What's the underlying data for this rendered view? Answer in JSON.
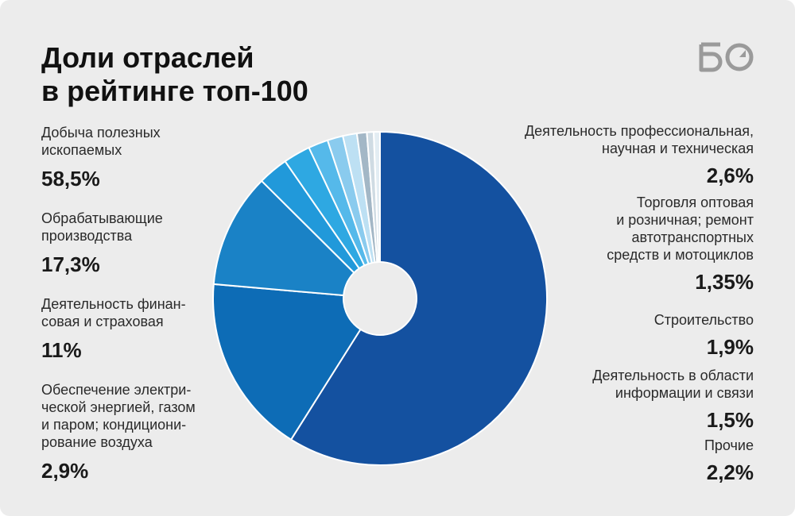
{
  "title_lines": [
    "Доли отраслей",
    "в рейтинге топ-100"
  ],
  "logo_text": "БО",
  "colors": {
    "background": "#ececec",
    "slices": [
      "#1451a0",
      "#0d6cb6",
      "#1a82c6",
      "#2199da",
      "#2ea8e2",
      "#55b9ea",
      "#8acbee",
      "#bde0f3",
      "#a3b7c6",
      "#cfdbe3",
      "#e3edf3"
    ]
  },
  "labels": [
    {
      "name_lines": [
        "Добыча полезных",
        "ископаемых"
      ],
      "pct": "58,5%"
    },
    {
      "name_lines": [
        "Обрабатывающие",
        "производства"
      ],
      "pct": "17,3%"
    },
    {
      "name_lines": [
        "Деятельность финан-",
        "совая и страховая"
      ],
      "pct": "11%"
    },
    {
      "name_lines": [
        "Обеспечение электри-",
        "ческой энергией, газом",
        "и паром; кондициони-",
        "рование воздуха"
      ],
      "pct": "2,9%"
    },
    {
      "name_lines": [
        "Деятельность профессиональная,",
        "научная и техническая"
      ],
      "pct": "2,6%"
    },
    {
      "name_lines": [
        "Торговля оптовая",
        "и розничная; ремонт",
        "автотранспортных",
        "средств и мотоциклов"
      ],
      "pct": "1,35%"
    },
    {
      "name_lines": [
        "Строительство"
      ],
      "pct": "1,9%"
    },
    {
      "name_lines": [
        "Деятельность в области",
        "информации и связи"
      ],
      "pct": "1,5%"
    },
    {
      "name_lines": [
        "Прочие"
      ],
      "pct": "2,2%"
    }
  ],
  "chart_data": {
    "type": "pie",
    "donut": true,
    "start": "12 o'clock",
    "direction": "clockwise",
    "slices": [
      {
        "label": "Добыча полезных ископаемых",
        "value": 58.5
      },
      {
        "label": "Обрабатывающие производства",
        "value": 17.3
      },
      {
        "label": "Деятельность финансовая и страховая",
        "value": 11
      },
      {
        "label": "Обеспечение электрической энергией, газом и паром; кондиционирование воздуха",
        "value": 2.9
      },
      {
        "label": "Деятельность профессиональная, научная и техническая",
        "value": 2.6
      },
      {
        "label": "Строительство",
        "value": 1.9
      },
      {
        "label": "Деятельность в области информации и связи",
        "value": 1.5
      },
      {
        "label": "Торговля оптовая и розничная; ремонт автотранспортных средств и мотоциклов",
        "value": 1.35
      },
      {
        "label": "Прочие",
        "value": 0.95
      },
      {
        "label": "Прочие",
        "value": 0.65
      },
      {
        "label": "Прочие",
        "value": 0.6
      }
    ]
  }
}
